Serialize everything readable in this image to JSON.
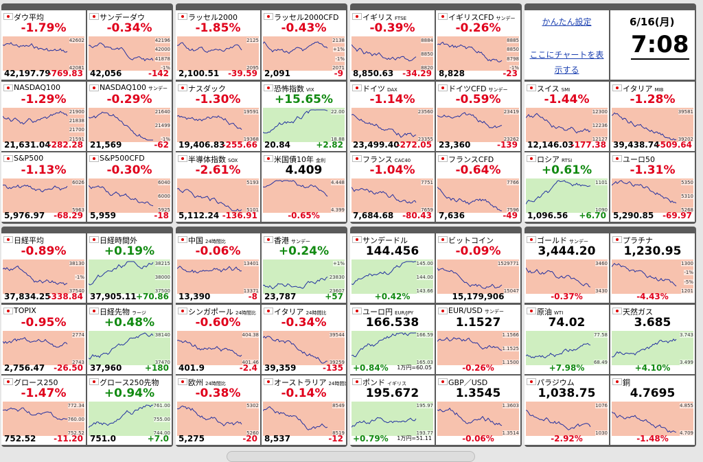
{
  "groups": [
    {
      "tiles": [
        {
          "name": "ダウ平均",
          "top": "-1.79%",
          "bottom": "42,197.79",
          "chg": "-769.83",
          "trend": "down",
          "style": "index",
          "labels": [
            "42602",
            "42081"
          ]
        },
        {
          "name": "サンデーダウ",
          "top": "-0.34%",
          "bottom": "42,056",
          "chg": "-142",
          "trend": "down",
          "style": "index",
          "labels": [
            "42196",
            "42000",
            "41878",
            "-1%"
          ]
        },
        {
          "name": "NASDAQ100",
          "top": "-1.29%",
          "bottom": "21,631.04",
          "chg": "-282.28",
          "trend": "down",
          "style": "index",
          "labels": [
            "21900",
            "21838",
            "21700",
            "21591"
          ]
        },
        {
          "name": "NASDAQ100",
          "sub": "サンデー",
          "top": "-0.29%",
          "bottom": "21,569",
          "chg": "-62",
          "trend": "down",
          "style": "index",
          "labels": [
            "21640",
            "21499",
            "-1%"
          ]
        },
        {
          "name": "S&P500",
          "top": "-1.13%",
          "bottom": "5,976.97",
          "chg": "-68.29",
          "trend": "down",
          "style": "index",
          "labels": [
            "6026",
            "5963"
          ]
        },
        {
          "name": "S&P500CFD",
          "top": "-0.30%",
          "bottom": "5,959",
          "chg": "-18",
          "trend": "down",
          "style": "index",
          "labels": [
            "6040",
            "6000",
            "5925"
          ]
        }
      ]
    },
    {
      "tiles": [
        {
          "name": "ラッセル2000",
          "top": "-1.85%",
          "bottom": "2,100.51",
          "chg": "-39.59",
          "trend": "down",
          "style": "index",
          "labels": [
            "2125",
            "2095"
          ]
        },
        {
          "name": "ラッセル2000CFD",
          "top": "-0.43%",
          "bottom": "2,091",
          "chg": "-9",
          "trend": "down",
          "style": "index",
          "labels": [
            "2138",
            "+1%",
            "-1%",
            "2071"
          ]
        },
        {
          "name": "ナスダック",
          "top": "-1.30%",
          "bottom": "19,406.83",
          "chg": "-255.66",
          "trend": "down",
          "style": "index",
          "labels": [
            "19591",
            "19368"
          ]
        },
        {
          "name": "恐怖指数",
          "sub": "VIX",
          "top": "+15.65%",
          "bottom": "20.84",
          "chg": "+2.82",
          "trend": "up",
          "style": "index",
          "labels": [
            "22.00",
            "18.88"
          ]
        },
        {
          "name": "半導体指数",
          "sub": "SOX",
          "top": "-2.61%",
          "bottom": "5,112.24",
          "chg": "-136.91",
          "trend": "down",
          "style": "index",
          "labels": [
            "5193",
            "5101"
          ]
        },
        {
          "name": "米国債10年",
          "sub": "金利",
          "top": "4.409",
          "bottom": "-0.65%",
          "trend": "down",
          "style": "quote",
          "labels": [
            "4.448",
            "4.399"
          ]
        }
      ]
    },
    {
      "tiles": [
        {
          "name": "イギリス",
          "sub": "FTSE",
          "top": "-0.39%",
          "bottom": "8,850.63",
          "chg": "-34.29",
          "trend": "down",
          "style": "index",
          "labels": [
            "8884",
            "8850",
            "8820"
          ]
        },
        {
          "name": "イギリスCFD",
          "sub": "サンデー",
          "top": "-0.26%",
          "bottom": "8,828",
          "chg": "-23",
          "trend": "down",
          "style": "index",
          "labels": [
            "8885",
            "8850",
            "8798",
            "-1%"
          ]
        },
        {
          "name": "ドイツ",
          "sub": "DAX",
          "top": "-1.14%",
          "bottom": "23,499.40",
          "chg": "-272.05",
          "trend": "down",
          "style": "index",
          "labels": [
            "23560",
            "23355"
          ]
        },
        {
          "name": "ドイツCFD",
          "sub": "サンデー",
          "top": "-0.59%",
          "bottom": "23,360",
          "chg": "-139",
          "trend": "down",
          "style": "index",
          "labels": [
            "23419",
            "23262"
          ]
        },
        {
          "name": "フランス",
          "sub": "CAC40",
          "top": "-1.04%",
          "bottom": "7,684.68",
          "chg": "-80.43",
          "trend": "down",
          "style": "index",
          "labels": [
            "7751",
            "7659"
          ]
        },
        {
          "name": "フランスCFD",
          "top": "-0.64%",
          "bottom": "7,636",
          "chg": "-49",
          "trend": "down",
          "style": "index",
          "labels": [
            "7766",
            "7596"
          ]
        }
      ]
    },
    {
      "panel": {
        "settings": "かんたん設定",
        "chart_link": "ここにチャートを表示する",
        "date": "6/16(月)",
        "time": "7:08"
      },
      "tiles": [
        {
          "name": "スイス",
          "sub": "SMI",
          "top": "-1.44%",
          "bottom": "12,146.03",
          "chg": "-177.38",
          "trend": "down",
          "style": "index",
          "labels": [
            "12300",
            "12236",
            "12127"
          ]
        },
        {
          "name": "イタリア",
          "sub": "MIB",
          "top": "-1.28%",
          "bottom": "39,438.74",
          "chg": "-509.64",
          "trend": "down",
          "style": "index",
          "labels": [
            "39581",
            "39202"
          ]
        },
        {
          "name": "ロシア",
          "sub": "RTSI",
          "top": "+0.61%",
          "bottom": "1,096.56",
          "chg": "+6.70",
          "trend": "up",
          "style": "index",
          "labels": [
            "1101",
            "1090"
          ]
        },
        {
          "name": "ユーロ50",
          "top": "-1.31%",
          "bottom": "5,290.85",
          "chg": "-69.97",
          "trend": "down",
          "style": "index",
          "labels": [
            "5350",
            "5310",
            "5268"
          ]
        }
      ]
    },
    {
      "tiles": [
        {
          "name": "日経平均",
          "top": "-0.89%",
          "bottom": "37,834.25",
          "chg": "-338.84",
          "trend": "down",
          "style": "index",
          "labels": [
            "38130",
            "-1%",
            "37540"
          ]
        },
        {
          "name": "日経時間外",
          "top": "+0.19%",
          "bottom": "37,905.11",
          "chg": "+70.86",
          "trend": "up",
          "style": "index",
          "labels": [
            "38215",
            "38000",
            "37500"
          ]
        },
        {
          "name": "TOPIX",
          "top": "-0.95%",
          "bottom": "2,756.47",
          "chg": "-26.50",
          "trend": "down",
          "style": "index",
          "labels": [
            "2774",
            "2743"
          ]
        },
        {
          "name": "日経先物",
          "sub": "ラージ",
          "top": "+0.48%",
          "bottom": "37,960",
          "chg": "+180",
          "trend": "up",
          "style": "index",
          "labels": [
            "38140",
            "37470"
          ]
        },
        {
          "name": "グロース250",
          "top": "-1.47%",
          "bottom": "752.52",
          "chg": "-11.20",
          "trend": "down",
          "style": "index",
          "labels": [
            "772.34",
            "760.00",
            "752.52"
          ]
        },
        {
          "name": "グロース250先物",
          "top": "+0.94%",
          "bottom": "751.0",
          "chg": "+7.0",
          "trend": "up",
          "style": "index",
          "labels": [
            "761.00",
            "755.00",
            "744.00"
          ]
        }
      ]
    },
    {
      "tiles": [
        {
          "name": "中国",
          "sub": "24時間比",
          "top": "-0.06%",
          "bottom": "13,390",
          "chg": "-8",
          "trend": "down",
          "style": "index",
          "labels": [
            "13401",
            "13371"
          ]
        },
        {
          "name": "香港",
          "sub": "サンデー",
          "top": "+0.24%",
          "bottom": "23,787",
          "chg": "+57",
          "trend": "up",
          "style": "index",
          "labels": [
            "+1%",
            "23830",
            "23607"
          ]
        },
        {
          "name": "シンガポール",
          "sub": "24時間比",
          "top": "-0.60%",
          "bottom": "401.9",
          "chg": "-2.4",
          "trend": "down",
          "style": "index",
          "labels": [
            "404.38",
            "401.46"
          ]
        },
        {
          "name": "イタリア",
          "sub": "24時間比",
          "top": "-0.34%",
          "bottom": "39,359",
          "chg": "-135",
          "trend": "down",
          "style": "index",
          "labels": [
            "39544",
            "39259"
          ]
        },
        {
          "name": "欧州",
          "sub": "24時間比",
          "top": "-0.38%",
          "bottom": "5,275",
          "chg": "-20",
          "trend": "down",
          "style": "index",
          "labels": [
            "5302",
            "5260"
          ]
        },
        {
          "name": "オーストラリア",
          "sub": "24時間比",
          "top": "-0.14%",
          "bottom": "8,537",
          "chg": "-12",
          "trend": "down",
          "style": "index",
          "labels": [
            "8549",
            "8519"
          ]
        }
      ]
    },
    {
      "tiles": [
        {
          "name": "サンデードル",
          "top": "144.456",
          "bottom": "+0.42%",
          "trend": "up",
          "style": "quote",
          "labels": [
            "145.00",
            "144.00",
            "143.66"
          ]
        },
        {
          "name": "ビットコイン",
          "top": "-0.09%",
          "bottom": "15,179,906",
          "trend": "down",
          "style": "index",
          "labels": [
            "1529771",
            "15047"
          ]
        },
        {
          "name": "ユーロ円",
          "sub": "EUR/JPY",
          "top": "166.538",
          "bottom": "+0.84%",
          "note": "1万円=60.05",
          "trend": "up",
          "style": "quote",
          "labels": [
            "166.59",
            "165.03"
          ]
        },
        {
          "name": "EUR/USD",
          "sub": "サンデー",
          "top": "1.1527",
          "bottom": "-0.26%",
          "trend": "down",
          "style": "quote",
          "labels": [
            "1.1566",
            "1.1525",
            "1.1500"
          ]
        },
        {
          "name": "ポンド",
          "sub": "イギリス",
          "top": "195.672",
          "bottom": "+0.79%",
          "note": "1万円=51.11",
          "trend": "up",
          "style": "quote",
          "labels": [
            "195.97",
            "193.77"
          ]
        },
        {
          "name": "GBP／USD",
          "top": "1.3545",
          "bottom": "-0.06%",
          "trend": "down",
          "style": "quote",
          "labels": [
            "1.3603",
            "1.3514"
          ]
        }
      ]
    },
    {
      "tiles": [
        {
          "name": "ゴールド",
          "sub": "サンデー",
          "top": "3,444.20",
          "bottom": "-0.37%",
          "trend": "down",
          "style": "quote",
          "labels": [
            "3460",
            "3430"
          ]
        },
        {
          "name": "プラチナ",
          "top": "1,230.95",
          "bottom": "-4.43%",
          "trend": "down",
          "style": "quote",
          "labels": [
            "1300",
            "-1%",
            "-5%",
            "1201"
          ]
        },
        {
          "name": "原油",
          "sub": "WTI",
          "top": "74.02",
          "bottom": "+7.98%",
          "trend": "up",
          "style": "quote",
          "labels": [
            "77.58",
            "68.49"
          ]
        },
        {
          "name": "天然ガス",
          "top": "3.685",
          "bottom": "+4.10%",
          "trend": "up",
          "style": "quote",
          "labels": [
            "3.743",
            "3.499"
          ]
        },
        {
          "name": "パラジウム",
          "top": "1,038.75",
          "bottom": "-2.92%",
          "trend": "down",
          "style": "quote",
          "labels": [
            "1076",
            "1030"
          ]
        },
        {
          "name": "銅",
          "top": "4.7695",
          "bottom": "-1.48%",
          "trend": "down",
          "style": "quote",
          "labels": [
            "4.855",
            "4.709"
          ]
        }
      ]
    }
  ]
}
